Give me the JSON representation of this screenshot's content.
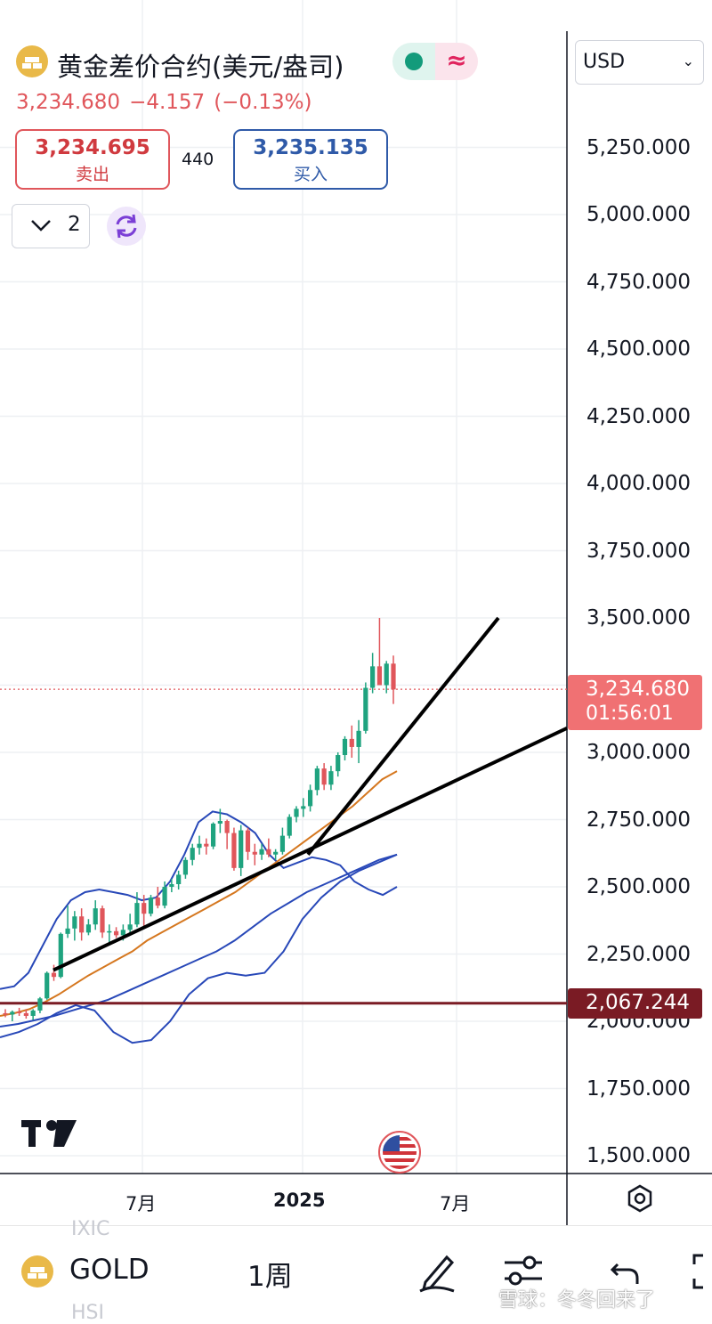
{
  "header": {
    "instrument_title": "黄金差价合约(美元/盎司)",
    "last_price": "3,234.680",
    "change": "−4.157",
    "change_pct": "(−0.13%)",
    "sell_price": "3,234.695",
    "sell_label": "卖出",
    "spread": "440",
    "buy_price": "3,235.135",
    "buy_label": "买入",
    "indicator_count": "2",
    "market_status_color": "#139b7b",
    "currency": "USD"
  },
  "price_scale": {
    "ticks": [
      "5,250.000",
      "5,000.000",
      "4,750.000",
      "4,500.000",
      "4,250.000",
      "4,000.000",
      "3,750.000",
      "3,500.000",
      "3,000.000",
      "2,750.000",
      "2,500.000",
      "2,250.000",
      "2,000.000",
      "1,750.000",
      "1,500.000"
    ],
    "last_price_label": "3,234.680",
    "countdown": "01:56:01",
    "horizontal_line_label": "2,067.244",
    "colors": {
      "last_price": "#f07173",
      "horizontal_line": "#7a1b24"
    }
  },
  "time_scale": {
    "ticks": [
      "7月",
      "2025",
      "7月"
    ]
  },
  "chart_data": {
    "type": "candlestick",
    "interval": "1周",
    "ylim": [
      1450,
      5350
    ],
    "y_ticks": [
      1500,
      1750,
      2000,
      2250,
      2500,
      2750,
      3000,
      3250,
      3500,
      3750,
      4000,
      4250,
      4500,
      4750,
      5000,
      5250
    ],
    "x_range": [
      "2024-01-01",
      "2025-09-15"
    ],
    "candles_ohlc": [
      [
        2030,
        2045,
        2015,
        2025
      ],
      [
        2025,
        2040,
        2000,
        2035
      ],
      [
        2035,
        2050,
        2020,
        2030
      ],
      [
        2030,
        2045,
        2010,
        2020
      ],
      [
        2020,
        2045,
        2005,
        2040
      ],
      [
        2040,
        2090,
        2030,
        2085
      ],
      [
        2085,
        2185,
        2080,
        2180
      ],
      [
        2180,
        2210,
        2150,
        2165
      ],
      [
        2165,
        2330,
        2160,
        2325
      ],
      [
        2325,
        2430,
        2310,
        2345
      ],
      [
        2345,
        2410,
        2300,
        2390
      ],
      [
        2390,
        2420,
        2300,
        2330
      ],
      [
        2330,
        2380,
        2320,
        2360
      ],
      [
        2360,
        2450,
        2340,
        2420
      ],
      [
        2420,
        2430,
        2310,
        2330
      ],
      [
        2330,
        2360,
        2290,
        2335
      ],
      [
        2335,
        2350,
        2310,
        2320
      ],
      [
        2320,
        2360,
        2300,
        2340
      ],
      [
        2340,
        2400,
        2330,
        2360
      ],
      [
        2360,
        2480,
        2350,
        2440
      ],
      [
        2440,
        2470,
        2350,
        2400
      ],
      [
        2400,
        2470,
        2390,
        2460
      ],
      [
        2460,
        2500,
        2420,
        2430
      ],
      [
        2430,
        2520,
        2420,
        2500
      ],
      [
        2500,
        2530,
        2480,
        2510
      ],
      [
        2510,
        2560,
        2490,
        2545
      ],
      [
        2545,
        2610,
        2530,
        2600
      ],
      [
        2600,
        2660,
        2580,
        2645
      ],
      [
        2645,
        2690,
        2620,
        2660
      ],
      [
        2660,
        2680,
        2620,
        2650
      ],
      [
        2650,
        2740,
        2640,
        2735
      ],
      [
        2735,
        2790,
        2700,
        2745
      ],
      [
        2745,
        2750,
        2640,
        2700
      ],
      [
        2700,
        2720,
        2560,
        2570
      ],
      [
        2570,
        2730,
        2540,
        2710
      ],
      [
        2710,
        2720,
        2600,
        2630
      ],
      [
        2630,
        2660,
        2580,
        2620
      ],
      [
        2620,
        2660,
        2600,
        2640
      ],
      [
        2640,
        2680,
        2610,
        2620
      ],
      [
        2620,
        2640,
        2600,
        2630
      ],
      [
        2630,
        2720,
        2620,
        2690
      ],
      [
        2690,
        2770,
        2680,
        2760
      ],
      [
        2760,
        2800,
        2740,
        2790
      ],
      [
        2790,
        2830,
        2760,
        2800
      ],
      [
        2800,
        2880,
        2780,
        2860
      ],
      [
        2860,
        2950,
        2840,
        2940
      ],
      [
        2940,
        2960,
        2860,
        2880
      ],
      [
        2880,
        2950,
        2860,
        2930
      ],
      [
        2930,
        3000,
        2910,
        2990
      ],
      [
        2990,
        3060,
        2970,
        3050
      ],
      [
        3050,
        3100,
        2980,
        3020
      ],
      [
        3020,
        3120,
        2960,
        3080
      ],
      [
        3080,
        3260,
        3070,
        3240
      ],
      [
        3240,
        3370,
        3220,
        3320
      ],
      [
        3320,
        3500,
        3280,
        3250
      ],
      [
        3250,
        3340,
        3220,
        3330
      ],
      [
        3330,
        3360,
        3180,
        3234
      ]
    ],
    "overlays": {
      "ma": [
        2020,
        2030,
        2045,
        2070,
        2100,
        2135,
        2170,
        2200,
        2230,
        2260,
        2300,
        2330,
        2360,
        2390,
        2420,
        2450,
        2480,
        2520,
        2560,
        2600,
        2640,
        2680,
        2720,
        2760,
        2800,
        2850,
        2900,
        2930
      ],
      "bollinger_upper": [
        2120,
        2130,
        2180,
        2280,
        2380,
        2450,
        2480,
        2490,
        2480,
        2470,
        2450,
        2460,
        2520,
        2620,
        2740,
        2780,
        2770,
        2740,
        2700,
        2620,
        2570,
        2590,
        2610,
        2600,
        2580,
        2520,
        2490,
        2470,
        2500
      ],
      "bollinger_mid": [
        1980,
        1990,
        2005,
        2020,
        2040,
        2060,
        2080,
        2110,
        2140,
        2170,
        2200,
        2230,
        2260,
        2300,
        2350,
        2400,
        2440,
        2480,
        2510,
        2540,
        2570,
        2600,
        2620
      ],
      "bollinger_lower": [
        1940,
        1960,
        1990,
        2030,
        2060,
        2040,
        1960,
        1920,
        1930,
        2000,
        2100,
        2160,
        2180,
        2170,
        2180,
        2260,
        2380,
        2460,
        2520,
        2560,
        2590,
        2620
      ]
    },
    "horizontal_line": 2067.244,
    "last_price": 3234.68
  },
  "toolbar": {
    "symbol": "GOLD",
    "interval": "1周",
    "ghost_top": "IXIC",
    "ghost_bottom": "HSI"
  },
  "watermark": "雪球：冬冬回来了"
}
